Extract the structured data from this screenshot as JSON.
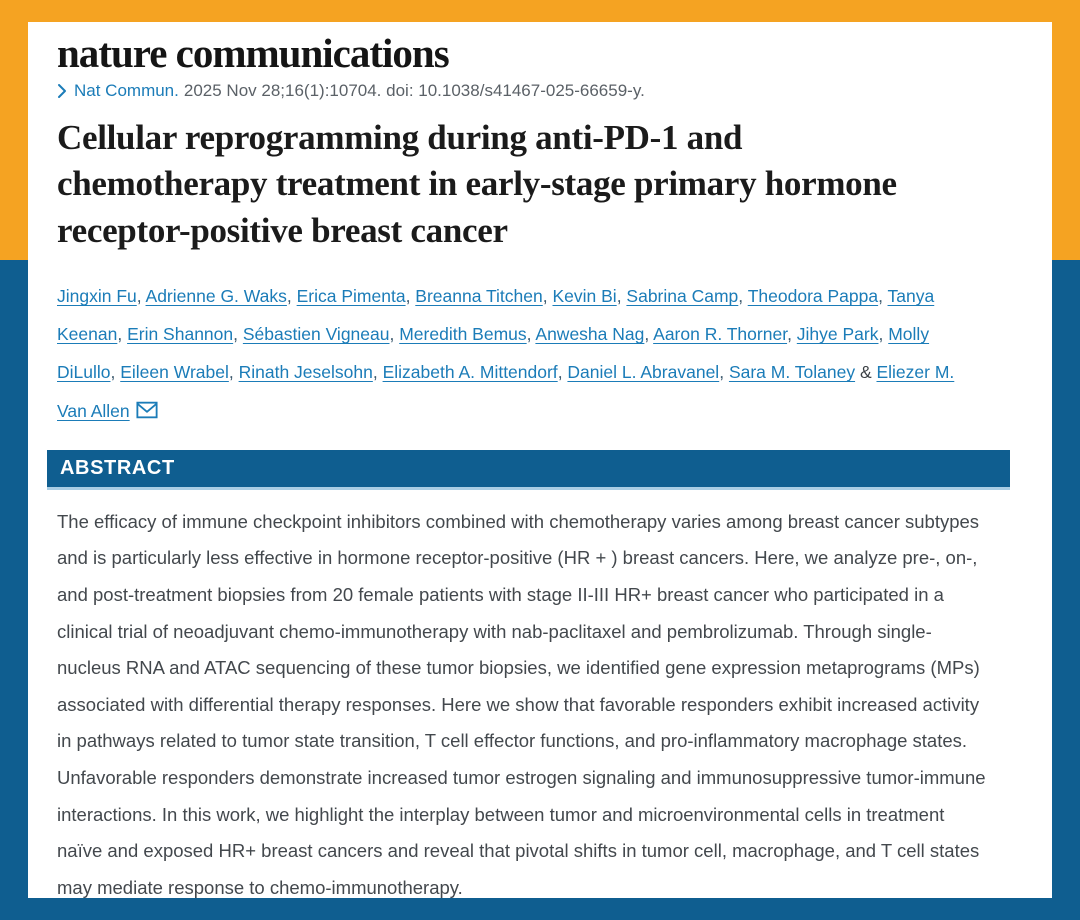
{
  "colors": {
    "accent_orange": "#F5A322",
    "frame_blue": "#0F5E90",
    "link_blue": "#1B7CB8"
  },
  "header": {
    "logo": "nature communications"
  },
  "citation": {
    "chevron_icon": "chevron-right-icon",
    "journal_link": "Nat Commun.",
    "detail": "2025 Nov 28;16(1):10704. doi: 10.1038/s41467-025-66659-y."
  },
  "article": {
    "title": "Cellular reprogramming during anti-PD-1 and chemotherapy treatment in early-stage primary hormone receptor-positive breast cancer"
  },
  "authors": {
    "list": [
      "Jingxin Fu",
      "Adrienne G. Waks",
      "Erica Pimenta",
      "Breanna Titchen",
      "Kevin Bi",
      "Sabrina Camp",
      "Theodora Pappa",
      "Tanya Keenan",
      "Erin Shannon",
      "Sébastien Vigneau",
      "Meredith Bemus",
      "Anwesha Nag",
      "Aaron R. Thorner",
      "Jihye Park",
      "Molly DiLullo",
      "Eileen Wrabel",
      "Rinath Jeselsohn",
      "Elizabeth A. Mittendorf",
      "Daniel L. Abravanel",
      "Sara M. Tolaney",
      "Eliezer M. Van Allen"
    ],
    "separator": ", ",
    "last_separator": "&",
    "email_icon": "email-envelope-icon"
  },
  "abstract": {
    "heading": "ABSTRACT",
    "text": "The efficacy of immune checkpoint inhibitors combined with chemotherapy varies among breast cancer subtypes and is particularly less effective in hormone receptor-positive (HR + ) breast cancers. Here, we analyze pre-, on-, and post-treatment biopsies from 20 female patients with stage II-III HR+ breast cancer who participated in a clinical trial of neoadjuvant chemo-immunotherapy with nab-paclitaxel and pembrolizumab. Through single-nucleus RNA and ATAC sequencing of these tumor biopsies, we identified gene expression metaprograms (MPs) associated with differential therapy responses. Here we show that favorable responders exhibit increased activity in pathways related to tumor state transition, T cell effector functions, and pro-inflammatory macrophage states. Unfavorable responders demonstrate increased tumor estrogen signaling and immunosuppressive tumor-immune interactions. In this work, we highlight the interplay between tumor and microenvironmental cells in treatment naïve and exposed HR+ breast cancers and reveal that pivotal shifts in tumor cell, macrophage, and T cell states may mediate response to chemo-immunotherapy."
  }
}
